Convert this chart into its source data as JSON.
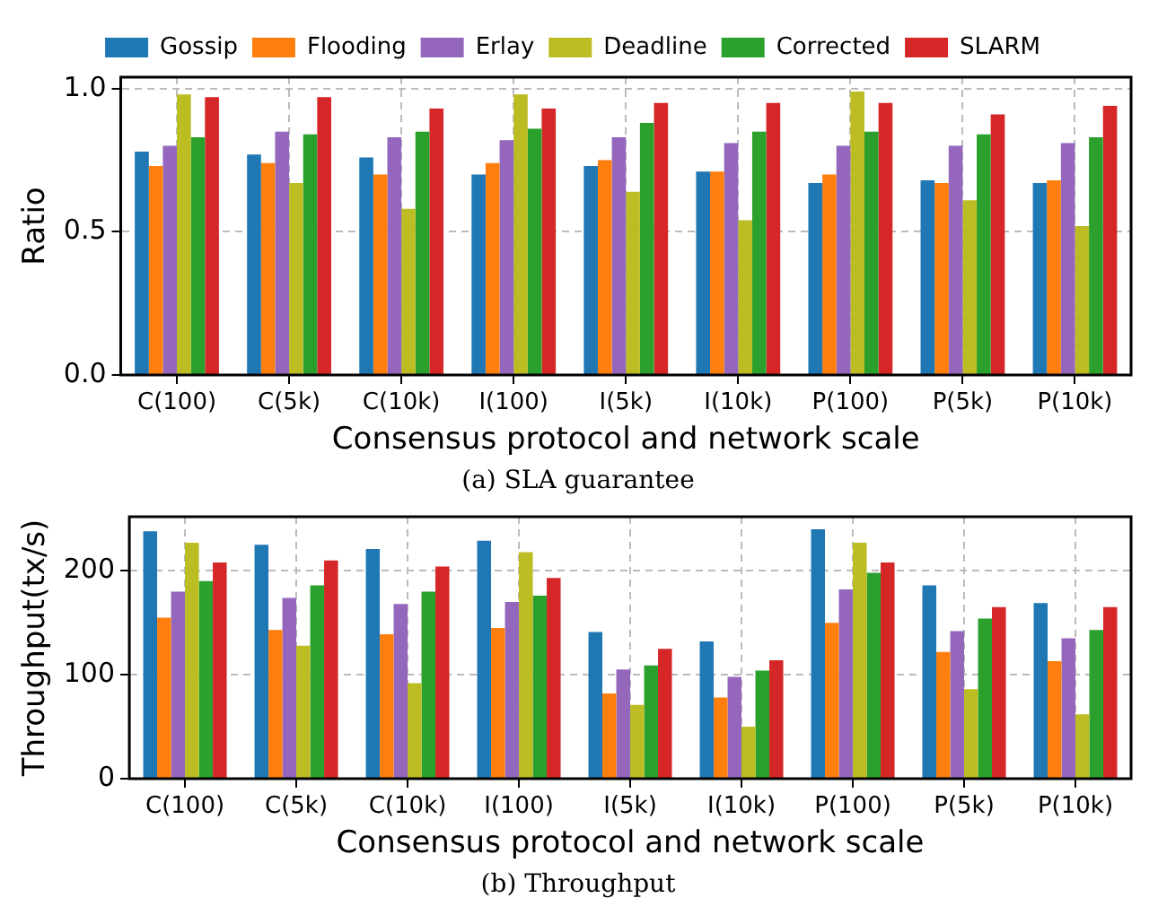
{
  "chart_data": [
    {
      "type": "bar",
      "xlabel": "Consensus protocol and network scale",
      "ylabel": "Ratio",
      "annotations": [
        "(a) SLA guarantee"
      ],
      "categories": [
        "C(100)",
        "C(5k)",
        "C(10k)",
        "I(100)",
        "I(5k)",
        "I(10k)",
        "P(100)",
        "P(5k)",
        "P(10k)"
      ],
      "series": [
        {
          "name": "Gossip",
          "color": "#1f77b4",
          "values": [
            0.78,
            0.77,
            0.76,
            0.7,
            0.73,
            0.71,
            0.67,
            0.68,
            0.67
          ]
        },
        {
          "name": "Flooding",
          "color": "#ff7f0e",
          "values": [
            0.73,
            0.74,
            0.7,
            0.74,
            0.75,
            0.71,
            0.7,
            0.67,
            0.68
          ]
        },
        {
          "name": "Erlay",
          "color": "#9467bd",
          "values": [
            0.8,
            0.85,
            0.83,
            0.82,
            0.83,
            0.81,
            0.8,
            0.8,
            0.81
          ]
        },
        {
          "name": "Deadline",
          "color": "#bcbd22",
          "values": [
            0.98,
            0.67,
            0.58,
            0.98,
            0.64,
            0.54,
            0.99,
            0.61,
            0.52
          ]
        },
        {
          "name": "Corrected",
          "color": "#2ca02c",
          "values": [
            0.83,
            0.84,
            0.85,
            0.86,
            0.88,
            0.85,
            0.85,
            0.84,
            0.83
          ]
        },
        {
          "name": "SLARM",
          "color": "#d62728",
          "values": [
            0.97,
            0.97,
            0.93,
            0.93,
            0.95,
            0.95,
            0.95,
            0.91,
            0.94
          ]
        }
      ],
      "ylim": [
        0,
        1.04
      ],
      "yticks": [
        {
          "value": 0,
          "label": "0.0"
        },
        {
          "value": 0.5,
          "label": "0.5"
        },
        {
          "value": 1,
          "label": "1.0"
        }
      ],
      "grid": true,
      "legend": "top"
    },
    {
      "type": "bar",
      "xlabel": "Consensus protocol and network scale",
      "ylabel": "Throughput(tx/s)",
      "annotations": [
        "(b) Throughput"
      ],
      "categories": [
        "C(100)",
        "C(5k)",
        "C(10k)",
        "I(100)",
        "I(5k)",
        "I(10k)",
        "P(100)",
        "P(5k)",
        "P(10k)"
      ],
      "series": [
        {
          "color": "#1f77b4",
          "values": [
            238,
            225,
            221,
            229,
            141,
            132,
            240,
            186,
            169
          ]
        },
        {
          "color": "#ff7f0e",
          "values": [
            155,
            143,
            139,
            145,
            82,
            78,
            150,
            122,
            113
          ]
        },
        {
          "color": "#9467bd",
          "values": [
            180,
            174,
            168,
            170,
            105,
            98,
            182,
            142,
            135
          ]
        },
        {
          "color": "#bcbd22",
          "values": [
            227,
            128,
            92,
            218,
            71,
            50,
            227,
            86,
            62
          ]
        },
        {
          "color": "#2ca02c",
          "values": [
            190,
            186,
            180,
            176,
            109,
            104,
            198,
            154,
            143
          ]
        },
        {
          "color": "#d62728",
          "values": [
            208,
            210,
            204,
            193,
            125,
            114,
            208,
            165,
            165
          ]
        }
      ],
      "ylim": [
        0,
        252
      ],
      "yticks": [
        0,
        100,
        200
      ],
      "grid": true
    }
  ]
}
